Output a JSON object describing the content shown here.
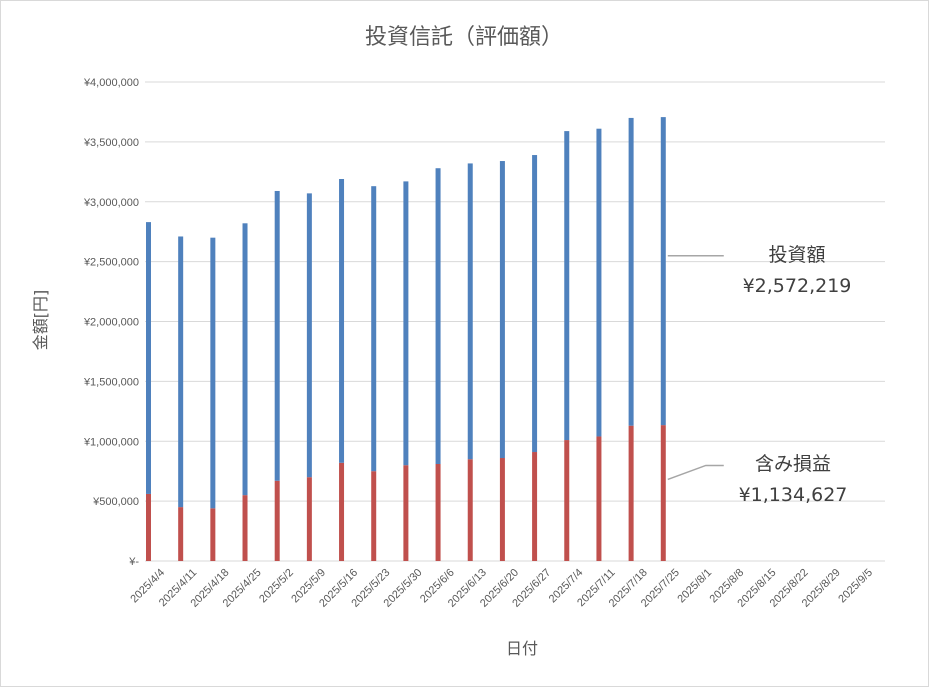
{
  "chart_data": {
    "type": "bar",
    "stacked": true,
    "title": "投資信託（評価額）",
    "xlabel": "日付",
    "ylabel": "金額[円]",
    "ylim": [
      0,
      4000000
    ],
    "yticks": [
      {
        "value": 0,
        "label": "¥-"
      },
      {
        "value": 500000,
        "label": "¥500,000"
      },
      {
        "value": 1000000,
        "label": "¥1,000,000"
      },
      {
        "value": 1500000,
        "label": "¥1,500,000"
      },
      {
        "value": 2000000,
        "label": "¥2,000,000"
      },
      {
        "value": 2500000,
        "label": "¥2,500,000"
      },
      {
        "value": 3000000,
        "label": "¥3,000,000"
      },
      {
        "value": 3500000,
        "label": "¥3,500,000"
      },
      {
        "value": 4000000,
        "label": "¥4,000,000"
      }
    ],
    "categories": [
      "2025/4/4",
      "2025/4/11",
      "2025/4/18",
      "2025/4/25",
      "2025/5/2",
      "2025/5/9",
      "2025/5/16",
      "2025/5/23",
      "2025/5/30",
      "2025/6/6",
      "2025/6/13",
      "2025/6/20",
      "2025/6/27",
      "2025/7/4",
      "2025/7/11",
      "2025/7/18",
      "2025/7/25",
      "2025/8/1",
      "2025/8/8",
      "2025/8/15",
      "2025/8/22",
      "2025/8/29",
      "2025/9/5"
    ],
    "series": [
      {
        "id": "gain",
        "color": "#c0504d",
        "values": [
          560000,
          450000,
          440000,
          550000,
          670000,
          700000,
          820000,
          750000,
          800000,
          810000,
          850000,
          860000,
          910000,
          1010000,
          1040000,
          1130000,
          1134627,
          null,
          null,
          null,
          null,
          null,
          null
        ]
      },
      {
        "id": "invest",
        "color": "#4f81bd",
        "values": [
          2270000,
          2260000,
          2260000,
          2270000,
          2420000,
          2370000,
          2370000,
          2380000,
          2370000,
          2470000,
          2470000,
          2480000,
          2480000,
          2580000,
          2570000,
          2570000,
          2572219,
          null,
          null,
          null,
          null,
          null,
          null
        ]
      }
    ],
    "annotations": [
      {
        "series": "invest",
        "label": "投資額",
        "value": "¥2,572,219"
      },
      {
        "series": "gain",
        "label": "含み損益",
        "value": "¥1,134,627"
      }
    ],
    "grid": true,
    "legend": "none"
  },
  "colors": {
    "grid": "#d9d9d9",
    "text": "#595959",
    "leader": "#a6a6a6"
  }
}
